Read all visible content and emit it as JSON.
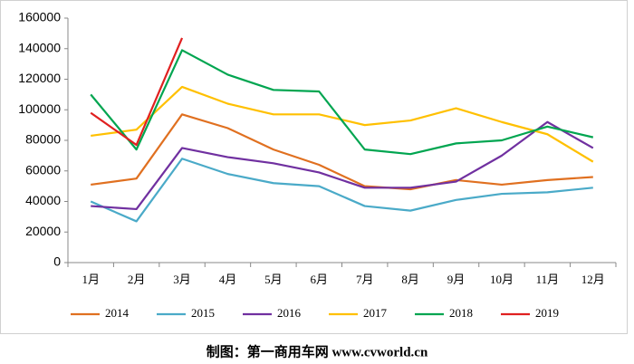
{
  "chart_data": {
    "type": "line",
    "categories": [
      "1月",
      "2月",
      "3月",
      "4月",
      "5月",
      "6月",
      "7月",
      "8月",
      "9月",
      "10月",
      "11月",
      "12月"
    ],
    "series": [
      {
        "name": "2014",
        "color": "#e07020",
        "values": [
          51000,
          55000,
          97000,
          88000,
          74000,
          64000,
          50000,
          48000,
          54000,
          51000,
          54000,
          56000
        ]
      },
      {
        "name": "2015",
        "color": "#4aaac8",
        "values": [
          40000,
          27000,
          68000,
          58000,
          52000,
          50000,
          37000,
          34000,
          41000,
          45000,
          46000,
          49000
        ]
      },
      {
        "name": "2016",
        "color": "#7030a0",
        "values": [
          37000,
          35000,
          75000,
          69000,
          65000,
          59000,
          49000,
          49000,
          53000,
          70000,
          92000,
          75000
        ]
      },
      {
        "name": "2017",
        "color": "#ffc000",
        "values": [
          83000,
          87000,
          115000,
          104000,
          97000,
          97000,
          90000,
          93000,
          101000,
          92000,
          84000,
          66000
        ]
      },
      {
        "name": "2018",
        "color": "#00a550",
        "values": [
          110000,
          74000,
          139000,
          123000,
          113000,
          112000,
          74000,
          71000,
          78000,
          80000,
          89000,
          82000
        ]
      },
      {
        "name": "2019",
        "color": "#e02020",
        "values": [
          98000,
          77000,
          147000,
          null,
          null,
          null,
          null,
          null,
          null,
          null,
          null,
          null
        ]
      }
    ],
    "ylim": [
      0,
      160000
    ],
    "yticks": [
      0,
      20000,
      40000,
      60000,
      80000,
      100000,
      120000,
      140000,
      160000
    ],
    "legend": "bottom",
    "grid": false
  },
  "footer": "制图：第一商用车网 www.cvworld.cn"
}
